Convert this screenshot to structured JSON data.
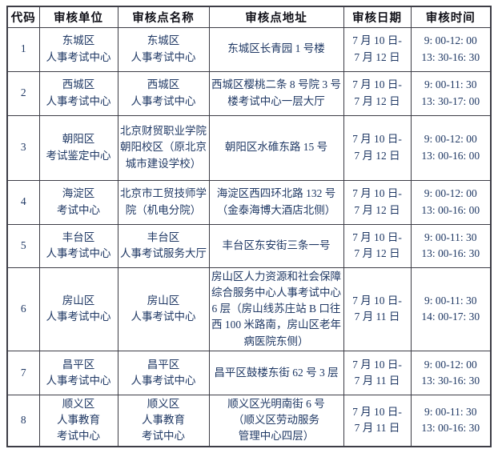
{
  "colors": {
    "background": "#ffffff",
    "border": "#3d3d46",
    "header_text": "#101018",
    "body_text": "#1f3864"
  },
  "table": {
    "headers": {
      "code": "代码",
      "unit": "审核单位",
      "name": "审核点名称",
      "address": "审核点地址",
      "date": "审核日期",
      "time": "审核时间"
    },
    "rows": [
      {
        "code": "1",
        "unit": "东城区\n人事考试中心",
        "name": "东城区\n人事考试中心",
        "address": "东城区长青园 1 号楼",
        "date": "7 月 10 日-\n7 月 12 日",
        "time": "9: 00-12: 00\n13: 30-16: 30"
      },
      {
        "code": "2",
        "unit": "西城区\n人事考试中心",
        "name": "西城区\n人事考试中心",
        "address": "西城区樱桃二条 8 号院 3 号\n楼考试中心一层大厅",
        "date": "7 月 10 日-\n7 月 12 日",
        "time": "9: 00-11: 30\n13: 30-17: 00"
      },
      {
        "code": "3",
        "unit": "朝阳区\n考试鉴定中心",
        "name": "北京财贸职业学院\n朝阳校区（原北京\n城市建设学校）",
        "address": "朝阳区水碓东路 15 号",
        "date": "7 月 10 日-\n7 月 12 日",
        "time": "9: 00-12: 00\n13: 00-16: 00"
      },
      {
        "code": "4",
        "unit": "海淀区\n考试中心",
        "name": "北京市工贸技师学\n院（机电分院）",
        "address": "海淀区西四环北路 132 号\n（金泰海博大酒店北侧）",
        "date": "7 月 10 日-\n7 月 12 日",
        "time": "9: 00-12: 00\n13: 00-16: 00"
      },
      {
        "code": "5",
        "unit": "丰台区\n人事考试中心",
        "name": "丰台区\n人事考试服务大厅",
        "address": "丰台区东安街三条一号",
        "date": "7 月 10 日-\n7 月 12 日",
        "time": "9: 00-11: 30\n13: 00-16: 30"
      },
      {
        "code": "6",
        "unit": "房山区\n人事考试中心",
        "name": "房山区\n人事考试中心",
        "address": "房山区人力资源和社会保障\n综合服务中心人事考试中心\n6 层（房山线苏庄站 B 口往\n西 100 米路南，房山区老年\n病医院东侧）",
        "date": "7 月 10 日-\n7 月 11 日",
        "time": "9: 00-11: 30\n14: 00-17: 30"
      },
      {
        "code": "7",
        "unit": "昌平区\n人事考试中心",
        "name": "昌平区\n人事考试中心",
        "address": "昌平区鼓楼东街 62 号 3 层",
        "date": "7 月 10 日-\n7 月 11 日",
        "time": "9: 00-12: 00\n13: 30-16: 30"
      },
      {
        "code": "8",
        "unit": "顺义区\n人事教育\n考试中心",
        "name": "顺义区\n人事教育\n考试中心",
        "address": "顺义区光明南街 6 号\n（顺义区劳动服务\n管理中心四层）",
        "date": "7 月 10 日-\n7 月 11 日",
        "time": "9: 00-11: 30\n13: 00-16: 30"
      }
    ]
  }
}
